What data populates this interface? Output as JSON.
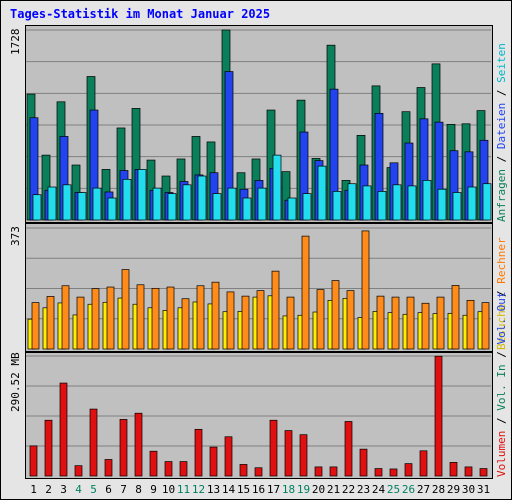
{
  "title": "Tages-Statistik im Monat Januar 2025",
  "colors": {
    "background": "#e5e5e5",
    "panel": "#c0c0c0",
    "grid": "#808080",
    "anfragen": "#0a7f5a",
    "dateien": "#2244ee",
    "seiten": "#22ddee",
    "besuche": "#ffee00",
    "rechner": "#ff8c1a",
    "volumen": "#e01010",
    "title": "#0000ff",
    "weekend_day": "#007f5f"
  },
  "right_axis": {
    "top": [
      {
        "text": "Anfragen",
        "color": "#0a7f5a"
      },
      {
        "text": " / ",
        "color": "#000000"
      },
      {
        "text": "Dateien",
        "color": "#2244ee"
      },
      {
        "text": " / ",
        "color": "#000000"
      },
      {
        "text": "Seiten",
        "color": "#00b7c7"
      }
    ],
    "middle": [
      {
        "text": "Besuche",
        "color": "#d4b800"
      },
      {
        "text": " / ",
        "color": "#000000"
      },
      {
        "text": "Rechner",
        "color": "#ff7700"
      }
    ],
    "bottom": [
      {
        "text": "Volumen",
        "color": "#e01010"
      },
      {
        "text": " / ",
        "color": "#000000"
      },
      {
        "text": "Vol. In",
        "color": "#0a7f5a"
      },
      {
        "text": " / ",
        "color": "#000000"
      },
      {
        "text": "Vol. Out",
        "color": "#2244ee"
      }
    ]
  },
  "chart_data": [
    {
      "type": "bar",
      "panel": "top",
      "ylabel": "1728",
      "ymax": 1728,
      "categories": [
        "1",
        "2",
        "3",
        "4",
        "5",
        "6",
        "7",
        "8",
        "9",
        "10",
        "11",
        "12",
        "13",
        "14",
        "15",
        "16",
        "17",
        "18",
        "19",
        "20",
        "21",
        "22",
        "23",
        "24",
        "25",
        "26",
        "27",
        "28",
        "29",
        "30",
        "31"
      ],
      "weekend": [
        4,
        5,
        11,
        12,
        18,
        19,
        25,
        26
      ],
      "series": [
        {
          "name": "Anfragen",
          "values": [
            1145,
            590,
            1075,
            500,
            1305,
            460,
            837,
            1015,
            545,
            400,
            555,
            760,
            710,
            1760,
            430,
            555,
            1000,
            440,
            1090,
            560,
            1590,
            360,
            770,
            1220,
            477,
            985,
            1205,
            1420,
            870,
            875,
            995
          ]
        },
        {
          "name": "Dateien",
          "values": [
            930,
            270,
            760,
            250,
            1000,
            255,
            450,
            460,
            270,
            250,
            350,
            410,
            430,
            1350,
            280,
            360,
            470,
            180,
            800,
            540,
            1190,
            270,
            500,
            970,
            520,
            700,
            920,
            890,
            630,
            620,
            725
          ]
        },
        {
          "name": "Seiten",
          "values": [
            230,
            300,
            320,
            250,
            290,
            200,
            370,
            460,
            290,
            240,
            320,
            400,
            240,
            290,
            200,
            290,
            590,
            200,
            240,
            490,
            260,
            330,
            310,
            260,
            320,
            310,
            360,
            280,
            250,
            300,
            330
          ]
        }
      ]
    },
    {
      "type": "bar",
      "panel": "middle",
      "ylabel": "373",
      "ymax": 373,
      "categories": [
        "1",
        "2",
        "3",
        "4",
        "5",
        "6",
        "7",
        "8",
        "9",
        "10",
        "11",
        "12",
        "13",
        "14",
        "15",
        "16",
        "17",
        "18",
        "19",
        "20",
        "21",
        "22",
        "23",
        "24",
        "25",
        "26",
        "27",
        "28",
        "29",
        "30",
        "31"
      ],
      "series": [
        {
          "name": "Besuche",
          "values": [
            92,
            127,
            142,
            105,
            138,
            144,
            157,
            138,
            127,
            119,
            127,
            145,
            139,
            115,
            116,
            160,
            164,
            102,
            104,
            114,
            150,
            156,
            97,
            116,
            112,
            107,
            112,
            109,
            110,
            104,
            115
          ]
        },
        {
          "name": "Rechner",
          "values": [
            143,
            162,
            195,
            160,
            186,
            191,
            245,
            198,
            187,
            191,
            155,
            195,
            206,
            176,
            163,
            180,
            240,
            160,
            348,
            183,
            211,
            180,
            364,
            163,
            160,
            160,
            141,
            160,
            196,
            150,
            143
          ]
        }
      ]
    },
    {
      "type": "bar",
      "panel": "bottom",
      "ylabel": "290.52 MB",
      "ymax": 290.52,
      "categories": [
        "1",
        "2",
        "3",
        "4",
        "5",
        "6",
        "7",
        "8",
        "9",
        "10",
        "11",
        "12",
        "13",
        "14",
        "15",
        "16",
        "17",
        "18",
        "19",
        "20",
        "21",
        "22",
        "23",
        "24",
        "25",
        "26",
        "27",
        "28",
        "29",
        "30",
        "31"
      ],
      "series": [
        {
          "name": "Volumen",
          "values": [
            73,
            135,
            225,
            25,
            162,
            40,
            137,
            152,
            60,
            35,
            35,
            113,
            70,
            95,
            28,
            20,
            135,
            110,
            100,
            22,
            22,
            132,
            65,
            18,
            17,
            30,
            61,
            290,
            33,
            22,
            18
          ]
        }
      ]
    }
  ],
  "x_labels": [
    "1",
    "2",
    "3",
    "4",
    "5",
    "6",
    "7",
    "8",
    "9",
    "10",
    "11",
    "12",
    "13",
    "14",
    "15",
    "16",
    "17",
    "18",
    "19",
    "20",
    "21",
    "22",
    "23",
    "24",
    "25",
    "26",
    "27",
    "28",
    "29",
    "30",
    "31"
  ]
}
